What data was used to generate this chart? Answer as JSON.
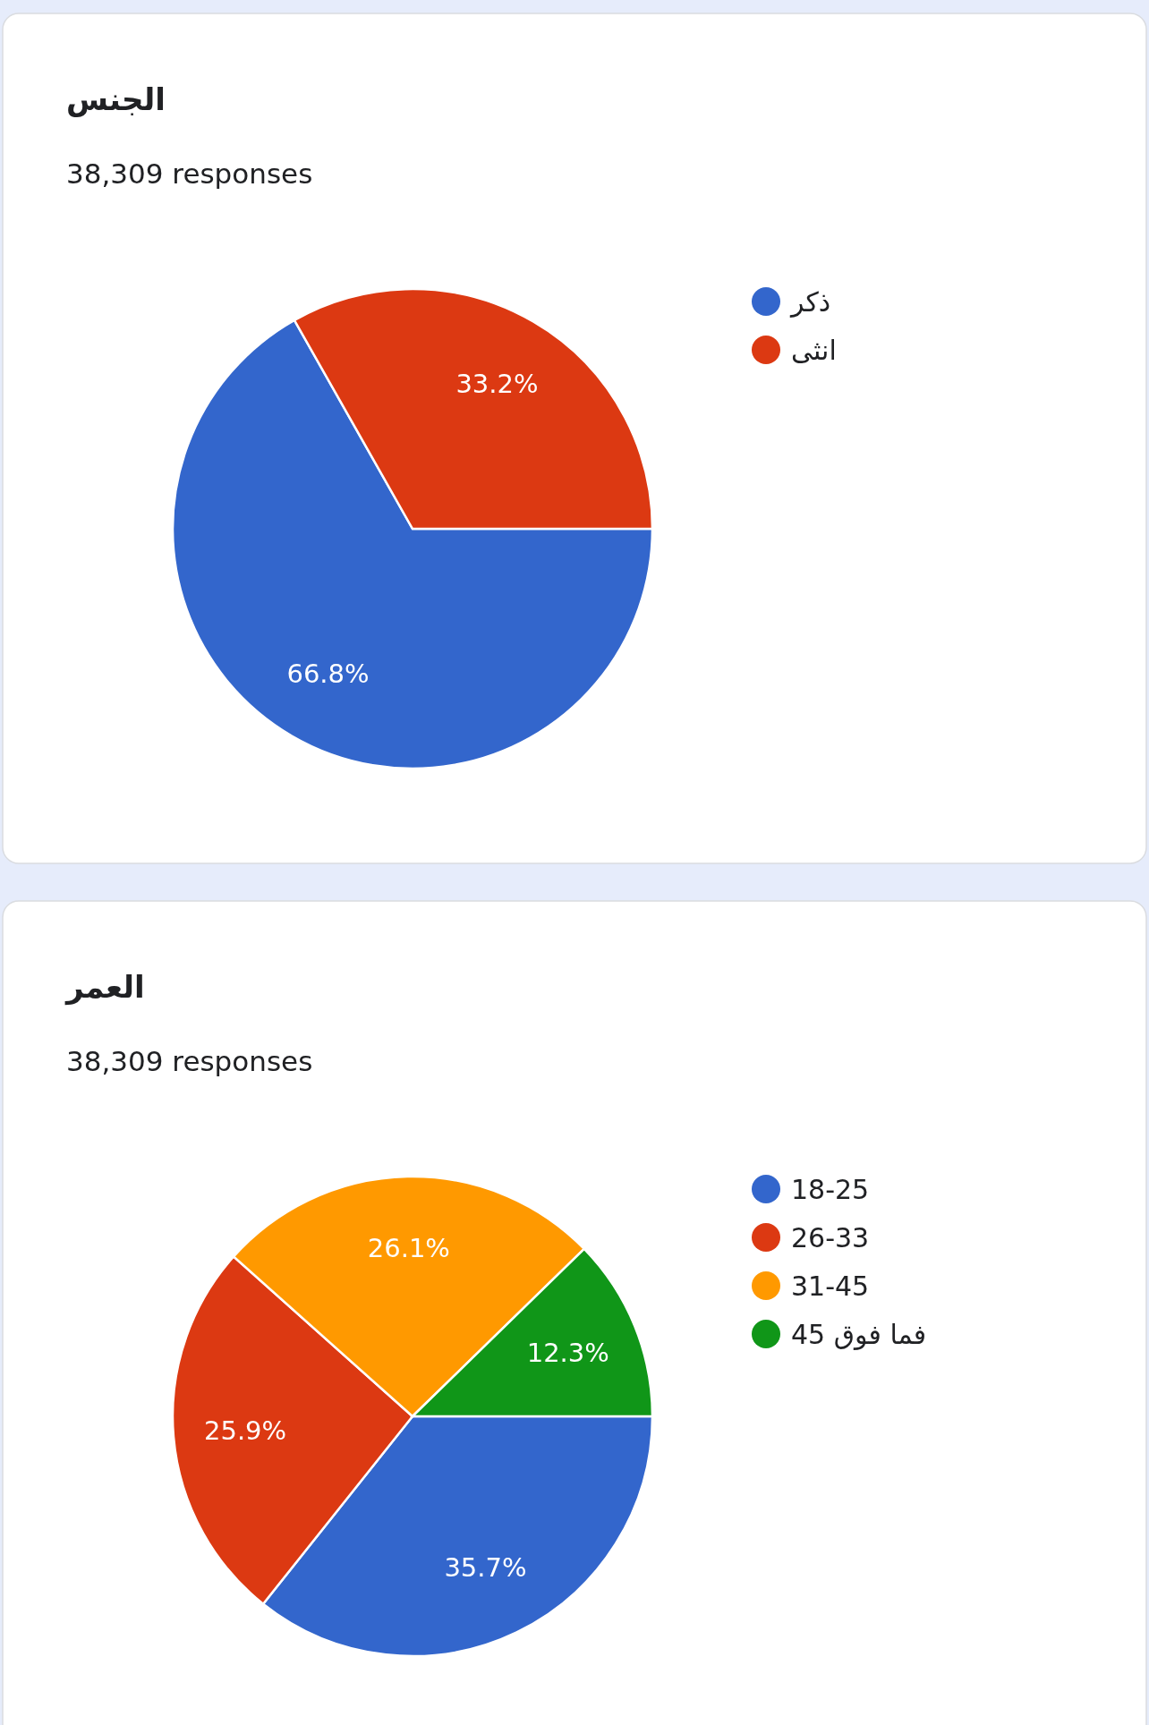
{
  "chart_data": [
    {
      "type": "pie",
      "title": "الجنس",
      "subtitle": "38,309 responses",
      "categories": [
        "ذكر",
        "انثى"
      ],
      "values": [
        66.8,
        33.2
      ],
      "value_labels": [
        "66.8%",
        "33.2%"
      ],
      "colors": [
        "#3366cc",
        "#dc3912"
      ],
      "legend": "right"
    },
    {
      "type": "pie",
      "title": "العمر",
      "subtitle": "38,309 responses",
      "categories": [
        "18-25",
        "26-33",
        "31-45",
        "فما فوق 45"
      ],
      "values": [
        35.7,
        25.9,
        26.1,
        12.3
      ],
      "value_labels": [
        "35.7%",
        "25.9%",
        "26.1%",
        "12.3%"
      ],
      "colors": [
        "#3366cc",
        "#dc3912",
        "#ff9900",
        "#109618"
      ],
      "legend": "right"
    }
  ]
}
